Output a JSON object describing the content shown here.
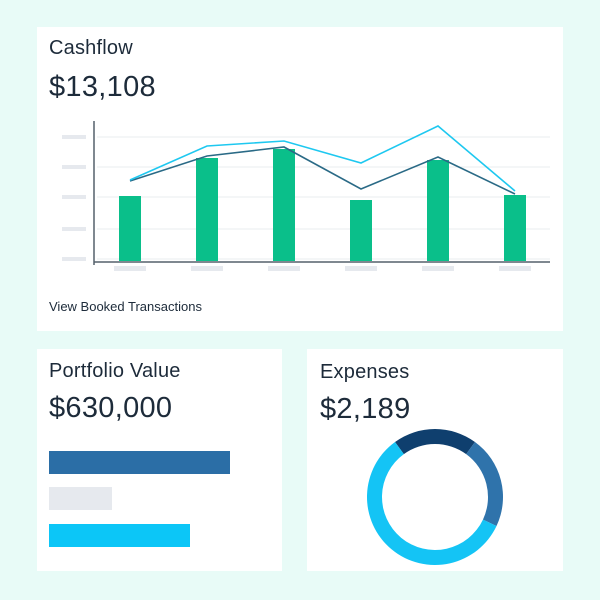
{
  "colors": {
    "background": "#e8fbf7",
    "card": "#ffffff",
    "bar_green": "#0abf8a",
    "line_dark": "#2a6a86",
    "line_light": "#1ec8f0",
    "hbar_dark": "#2b6ea6",
    "hbar_grey": "#e6e9ee",
    "hbar_cyan": "#0cc6f7",
    "donut_navy": "#0f3f6e",
    "donut_blue": "#2f73ab",
    "donut_cyan": "#14c4f5"
  },
  "cashflow": {
    "title": "Cashflow",
    "amount": "$13,108",
    "link_label": "View Booked Transactions"
  },
  "portfolio": {
    "title": "Portfolio Value",
    "amount": "$630,000"
  },
  "expenses": {
    "title": "Expenses",
    "amount": "$2,189"
  },
  "chart_data": [
    {
      "type": "bar",
      "categories": [
        "",
        "",
        "",
        "",
        "",
        ""
      ],
      "values": [
        65,
        103,
        112,
        61,
        101,
        66
      ],
      "ylim": [
        0,
        130
      ],
      "series": [
        {
          "values": [
            65,
            103,
            112,
            61,
            101,
            66
          ]
        },
        {
          "values": [
            80,
            105,
            114,
            72,
            104,
            67
          ]
        },
        {
          "values": [
            81,
            115,
            120,
            98,
            135,
            70
          ]
        }
      ],
      "grid": true,
      "tick_labels_placeholder": true
    },
    {
      "type": "bar",
      "orientation": "horizontal",
      "values": [
        100,
        35,
        78
      ],
      "xlim": [
        0,
        100
      ]
    },
    {
      "type": "pie",
      "donut": true,
      "values": [
        20,
        22,
        58
      ]
    }
  ]
}
